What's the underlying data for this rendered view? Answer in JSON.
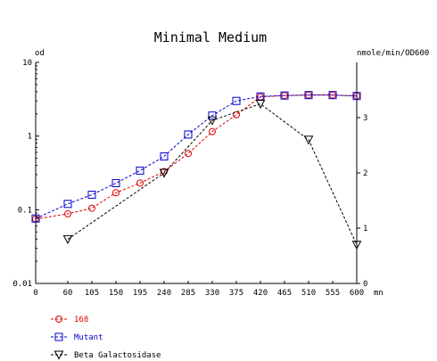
{
  "chart_data": {
    "type": "line",
    "title": "Minimal Medium",
    "xlabel": "mn",
    "ylabel_left": "od",
    "ylabel_right": "nmole/min/OD600",
    "x_ticks": [
      0,
      60,
      105,
      150,
      195,
      240,
      285,
      330,
      375,
      420,
      465,
      510,
      555,
      600
    ],
    "x_range": [
      0,
      600
    ],
    "y_left_scale": "log",
    "y_left_range": [
      0.01,
      10
    ],
    "y_left_ticks": [
      {
        "value": 10,
        "label": "10"
      },
      {
        "value": 1,
        "label": "1"
      },
      {
        "value": 0.1,
        "label": "0.1"
      },
      {
        "value": 0.01,
        "label": "0.01"
      }
    ],
    "y_right_scale": "linear",
    "y_right_range": [
      0,
      4
    ],
    "y_right_ticks": [
      0,
      1,
      2,
      3
    ],
    "grid": false,
    "legend_placement": "bottom-left",
    "series": [
      {
        "name": "168",
        "axis": "left",
        "marker": "circle",
        "line": "dashed",
        "color": "#dd0000",
        "x": [
          0,
          60,
          105,
          150,
          195,
          240,
          285,
          330,
          375,
          420,
          465,
          510,
          555,
          600
        ],
        "values": [
          0.075,
          0.088,
          0.105,
          0.17,
          0.23,
          0.33,
          0.58,
          1.15,
          1.95,
          3.4,
          3.55,
          3.6,
          3.6,
          3.5
        ]
      },
      {
        "name": "Mutant",
        "axis": "left",
        "marker": "square",
        "line": "dashed",
        "color": "#0000cc",
        "x": [
          0,
          60,
          105,
          150,
          195,
          240,
          285,
          330,
          375,
          420,
          465,
          510,
          555,
          600
        ],
        "values": [
          0.076,
          0.12,
          0.16,
          0.23,
          0.34,
          0.53,
          1.05,
          1.9,
          3.0,
          3.45,
          3.55,
          3.6,
          3.6,
          3.5
        ]
      },
      {
        "name": "Beta Galactosidase",
        "axis": "right",
        "marker": "triangle-down",
        "line": "dashed",
        "color": "#000000",
        "x": [
          60,
          240,
          330,
          420,
          510,
          600
        ],
        "values": [
          0.8,
          2.0,
          2.95,
          3.25,
          2.6,
          0.7
        ]
      }
    ]
  }
}
